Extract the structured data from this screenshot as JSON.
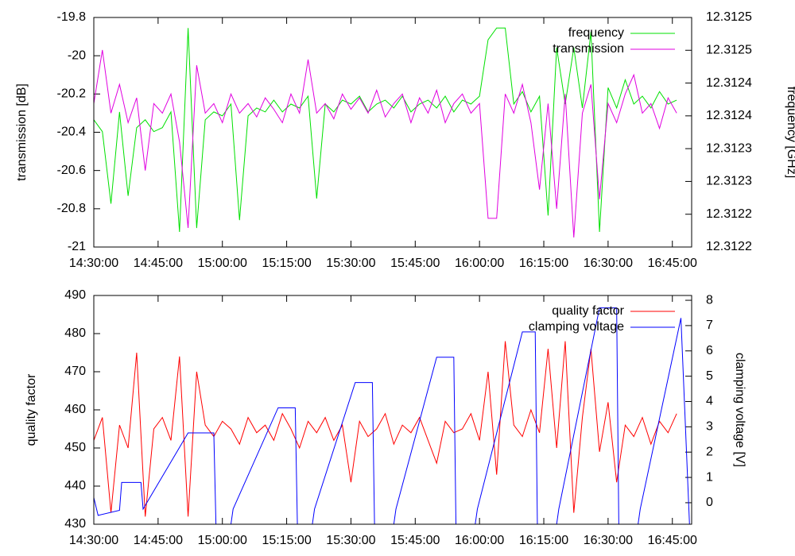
{
  "chart_data": [
    {
      "type": "line",
      "ylabel": "transmission [dB]",
      "y2label": "frequency [GHz]",
      "xlim": [
        "14:30:00",
        "16:49:30"
      ],
      "xticks": [
        "14:30:00",
        "14:45:00",
        "15:00:00",
        "15:15:00",
        "15:30:00",
        "15:45:00",
        "16:00:00",
        "16:15:00",
        "16:30:00",
        "16:45:00"
      ],
      "ylim": [
        -21,
        -19.8
      ],
      "yticks": [
        -19.8,
        -20,
        -20.2,
        -20.4,
        -20.6,
        -20.8,
        -21
      ],
      "y2lim": [
        12.31215,
        12.3125
      ],
      "y2ticks": [
        {
          "value": 12.3125,
          "label": "12.3125"
        },
        {
          "value": 12.31245,
          "label": "12.3125"
        },
        {
          "value": 12.3124,
          "label": "12.3124"
        },
        {
          "value": 12.31235,
          "label": "12.3124"
        },
        {
          "value": 12.3123,
          "label": "12.3123"
        },
        {
          "value": 12.31225,
          "label": "12.3123"
        },
        {
          "value": 12.3122,
          "label": "12.3122"
        },
        {
          "value": 12.31215,
          "label": "12.3122"
        }
      ],
      "x": [
        "14:30:00",
        "14:32:00",
        "14:34:00",
        "14:36:00",
        "14:38:00",
        "14:40:00",
        "14:42:00",
        "14:44:00",
        "14:46:00",
        "14:48:00",
        "14:50:00",
        "14:52:00",
        "14:54:00",
        "14:56:00",
        "14:58:00",
        "15:00:00",
        "15:02:00",
        "15:04:00",
        "15:06:00",
        "15:08:00",
        "15:10:00",
        "15:12:00",
        "15:14:00",
        "15:16:00",
        "15:18:00",
        "15:20:00",
        "15:22:00",
        "15:24:00",
        "15:26:00",
        "15:28:00",
        "15:30:00",
        "15:32:00",
        "15:34:00",
        "15:36:00",
        "15:38:00",
        "15:40:00",
        "15:42:00",
        "15:44:00",
        "15:46:00",
        "15:48:00",
        "15:50:00",
        "15:52:00",
        "15:54:00",
        "15:56:00",
        "15:58:00",
        "16:00:00",
        "16:02:00",
        "16:04:00",
        "16:06:00",
        "16:08:00",
        "16:10:00",
        "16:12:00",
        "16:14:00",
        "16:16:00",
        "16:18:00",
        "16:20:00",
        "16:22:00",
        "16:24:00",
        "16:26:00",
        "16:28:00",
        "16:30:00",
        "16:32:00",
        "16:34:00",
        "16:36:00",
        "16:38:00",
        "16:40:00",
        "16:42:00",
        "16:44:00",
        "16:46:00"
      ],
      "series": [
        {
          "name": "frequency",
          "color": "#00e000",
          "axis": "y2",
          "values": [
            12.312344,
            12.312326,
            12.312216,
            12.312356,
            12.312228,
            12.312332,
            12.312344,
            12.312326,
            12.312332,
            12.312356,
            12.312173,
            12.312484,
            12.312179,
            12.312344,
            12.312356,
            12.31235,
            12.312368,
            12.312191,
            12.31235,
            12.312362,
            12.312356,
            12.312374,
            12.312356,
            12.312368,
            12.312362,
            12.31238,
            12.312224,
            12.312368,
            12.312356,
            12.312374,
            12.312368,
            12.31238,
            12.312356,
            12.312368,
            12.312374,
            12.312362,
            12.31238,
            12.312356,
            12.312368,
            12.312374,
            12.312362,
            12.31238,
            12.312356,
            12.312374,
            12.312368,
            12.31238,
            12.312466,
            12.312484,
            12.312484,
            12.312368,
            12.312387,
            12.312356,
            12.31238,
            12.312198,
            12.312454,
            12.312368,
            12.312454,
            12.312362,
            12.312478,
            12.312173,
            12.312393,
            12.312362,
            12.312405,
            12.312368,
            12.31238,
            12.312362,
            12.312387,
            12.312368,
            12.312374
          ]
        },
        {
          "name": "transmission",
          "color": "#e000e0",
          "values": [
            -20.25,
            -19.97,
            -20.3,
            -20.15,
            -20.35,
            -20.22,
            -20.6,
            -20.25,
            -20.3,
            -20.2,
            -20.45,
            -20.9,
            -20.05,
            -20.3,
            -20.25,
            -20.35,
            -20.2,
            -20.3,
            -20.25,
            -20.32,
            -20.22,
            -20.28,
            -20.35,
            -20.2,
            -20.3,
            -20.02,
            -20.3,
            -20.25,
            -20.33,
            -20.2,
            -20.28,
            -20.22,
            -20.3,
            -20.18,
            -20.32,
            -20.25,
            -20.2,
            -20.35,
            -20.22,
            -20.3,
            -20.18,
            -20.35,
            -20.25,
            -20.2,
            -20.3,
            -20.25,
            -20.85,
            -20.85,
            -20.2,
            -20.3,
            -20.15,
            -20.35,
            -20.7,
            -20.25,
            -20.8,
            -20.2,
            -20.95,
            -20.3,
            -20.15,
            -20.75,
            -20.25,
            -20.35,
            -20.2,
            -20.1,
            -20.3,
            -20.25,
            -20.38,
            -20.22,
            -20.3
          ]
        }
      ]
    },
    {
      "type": "line",
      "ylabel": "quality factor",
      "y2label": "clamping voltage [V]",
      "xlim": [
        "14:30:00",
        "16:49:30"
      ],
      "xticks": [
        "14:30:00",
        "14:45:00",
        "15:00:00",
        "15:15:00",
        "15:30:00",
        "15:45:00",
        "16:00:00",
        "16:15:00",
        "16:30:00",
        "16:45:00"
      ],
      "ylim": [
        430,
        490
      ],
      "yticks": [
        430,
        440,
        450,
        460,
        470,
        480,
        490
      ],
      "y2lim": [
        -0.85,
        8.19
      ],
      "y2ticks": [
        0,
        1,
        2,
        3,
        4,
        5,
        6,
        7,
        8
      ],
      "x": [
        "14:30:00",
        "14:32:00",
        "14:34:00",
        "14:36:00",
        "14:38:00",
        "14:40:00",
        "14:42:00",
        "14:44:00",
        "14:46:00",
        "14:48:00",
        "14:50:00",
        "14:52:00",
        "14:54:00",
        "14:56:00",
        "14:58:00",
        "15:00:00",
        "15:02:00",
        "15:04:00",
        "15:06:00",
        "15:08:00",
        "15:10:00",
        "15:12:00",
        "15:14:00",
        "15:16:00",
        "15:18:00",
        "15:20:00",
        "15:22:00",
        "15:24:00",
        "15:26:00",
        "15:28:00",
        "15:30:00",
        "15:32:00",
        "15:34:00",
        "15:36:00",
        "15:38:00",
        "15:40:00",
        "15:42:00",
        "15:44:00",
        "15:46:00",
        "15:48:00",
        "15:50:00",
        "15:52:00",
        "15:54:00",
        "15:56:00",
        "15:58:00",
        "16:00:00",
        "16:02:00",
        "16:04:00",
        "16:06:00",
        "16:08:00",
        "16:10:00",
        "16:12:00",
        "16:14:00",
        "16:16:00",
        "16:18:00",
        "16:20:00",
        "16:22:00",
        "16:24:00",
        "16:26:00",
        "16:28:00",
        "16:30:00",
        "16:32:00",
        "16:34:00",
        "16:36:00",
        "16:38:00",
        "16:40:00",
        "16:42:00",
        "16:44:00",
        "16:46:00"
      ],
      "series": [
        {
          "name": "quality factor",
          "color": "#ff0000",
          "values": [
            452,
            458,
            433,
            456,
            450,
            475,
            432,
            455,
            458,
            452,
            474,
            432,
            470,
            456,
            453,
            457,
            455,
            451,
            458,
            454,
            456,
            452,
            459,
            455,
            450,
            457,
            454,
            458,
            452,
            456,
            441,
            457,
            453,
            455,
            459,
            451,
            456,
            454,
            458,
            452,
            446,
            457,
            454,
            455,
            459,
            452,
            470,
            443,
            478,
            456,
            453,
            460,
            454,
            476,
            450,
            478,
            433,
            458,
            476,
            449,
            462,
            441,
            456,
            453,
            458,
            451,
            457,
            454,
            459
          ]
        },
        {
          "name": "clamping voltage",
          "color": "#0000ff",
          "axis": "y2",
          "x": [
            "14:30:00",
            "14:31:00",
            "14:36:00",
            "14:36:30",
            "14:41:00",
            "14:41:30",
            "14:52:00",
            "14:58:00",
            "14:58:30",
            "15:02:00",
            "15:02:30",
            "15:13:00",
            "15:17:00",
            "15:17:30",
            "15:21:00",
            "15:21:30",
            "15:31:00",
            "15:35:00",
            "15:35:30",
            "15:40:00",
            "15:40:30",
            "15:50:00",
            "15:54:00",
            "15:54:30",
            "15:59:00",
            "15:59:30",
            "16:10:00",
            "16:13:00",
            "16:13:30",
            "16:18:00",
            "16:18:30",
            "16:28:00",
            "16:32:00",
            "16:32:30",
            "16:37:00",
            "16:37:30",
            "16:47:00",
            "16:49:00"
          ],
          "values": [
            0.2,
            -0.5,
            -0.3,
            0.8,
            0.8,
            -0.25,
            2.76,
            2.76,
            -0.85,
            -0.85,
            -0.25,
            3.75,
            3.75,
            -0.85,
            -0.85,
            -0.25,
            4.75,
            4.75,
            -0.85,
            -0.85,
            -0.25,
            5.75,
            5.75,
            -0.85,
            -0.85,
            -0.25,
            6.75,
            6.75,
            -0.85,
            -0.85,
            -0.25,
            7.7,
            7.7,
            -0.85,
            -0.85,
            -0.25,
            7.3,
            -0.85
          ]
        }
      ]
    }
  ]
}
